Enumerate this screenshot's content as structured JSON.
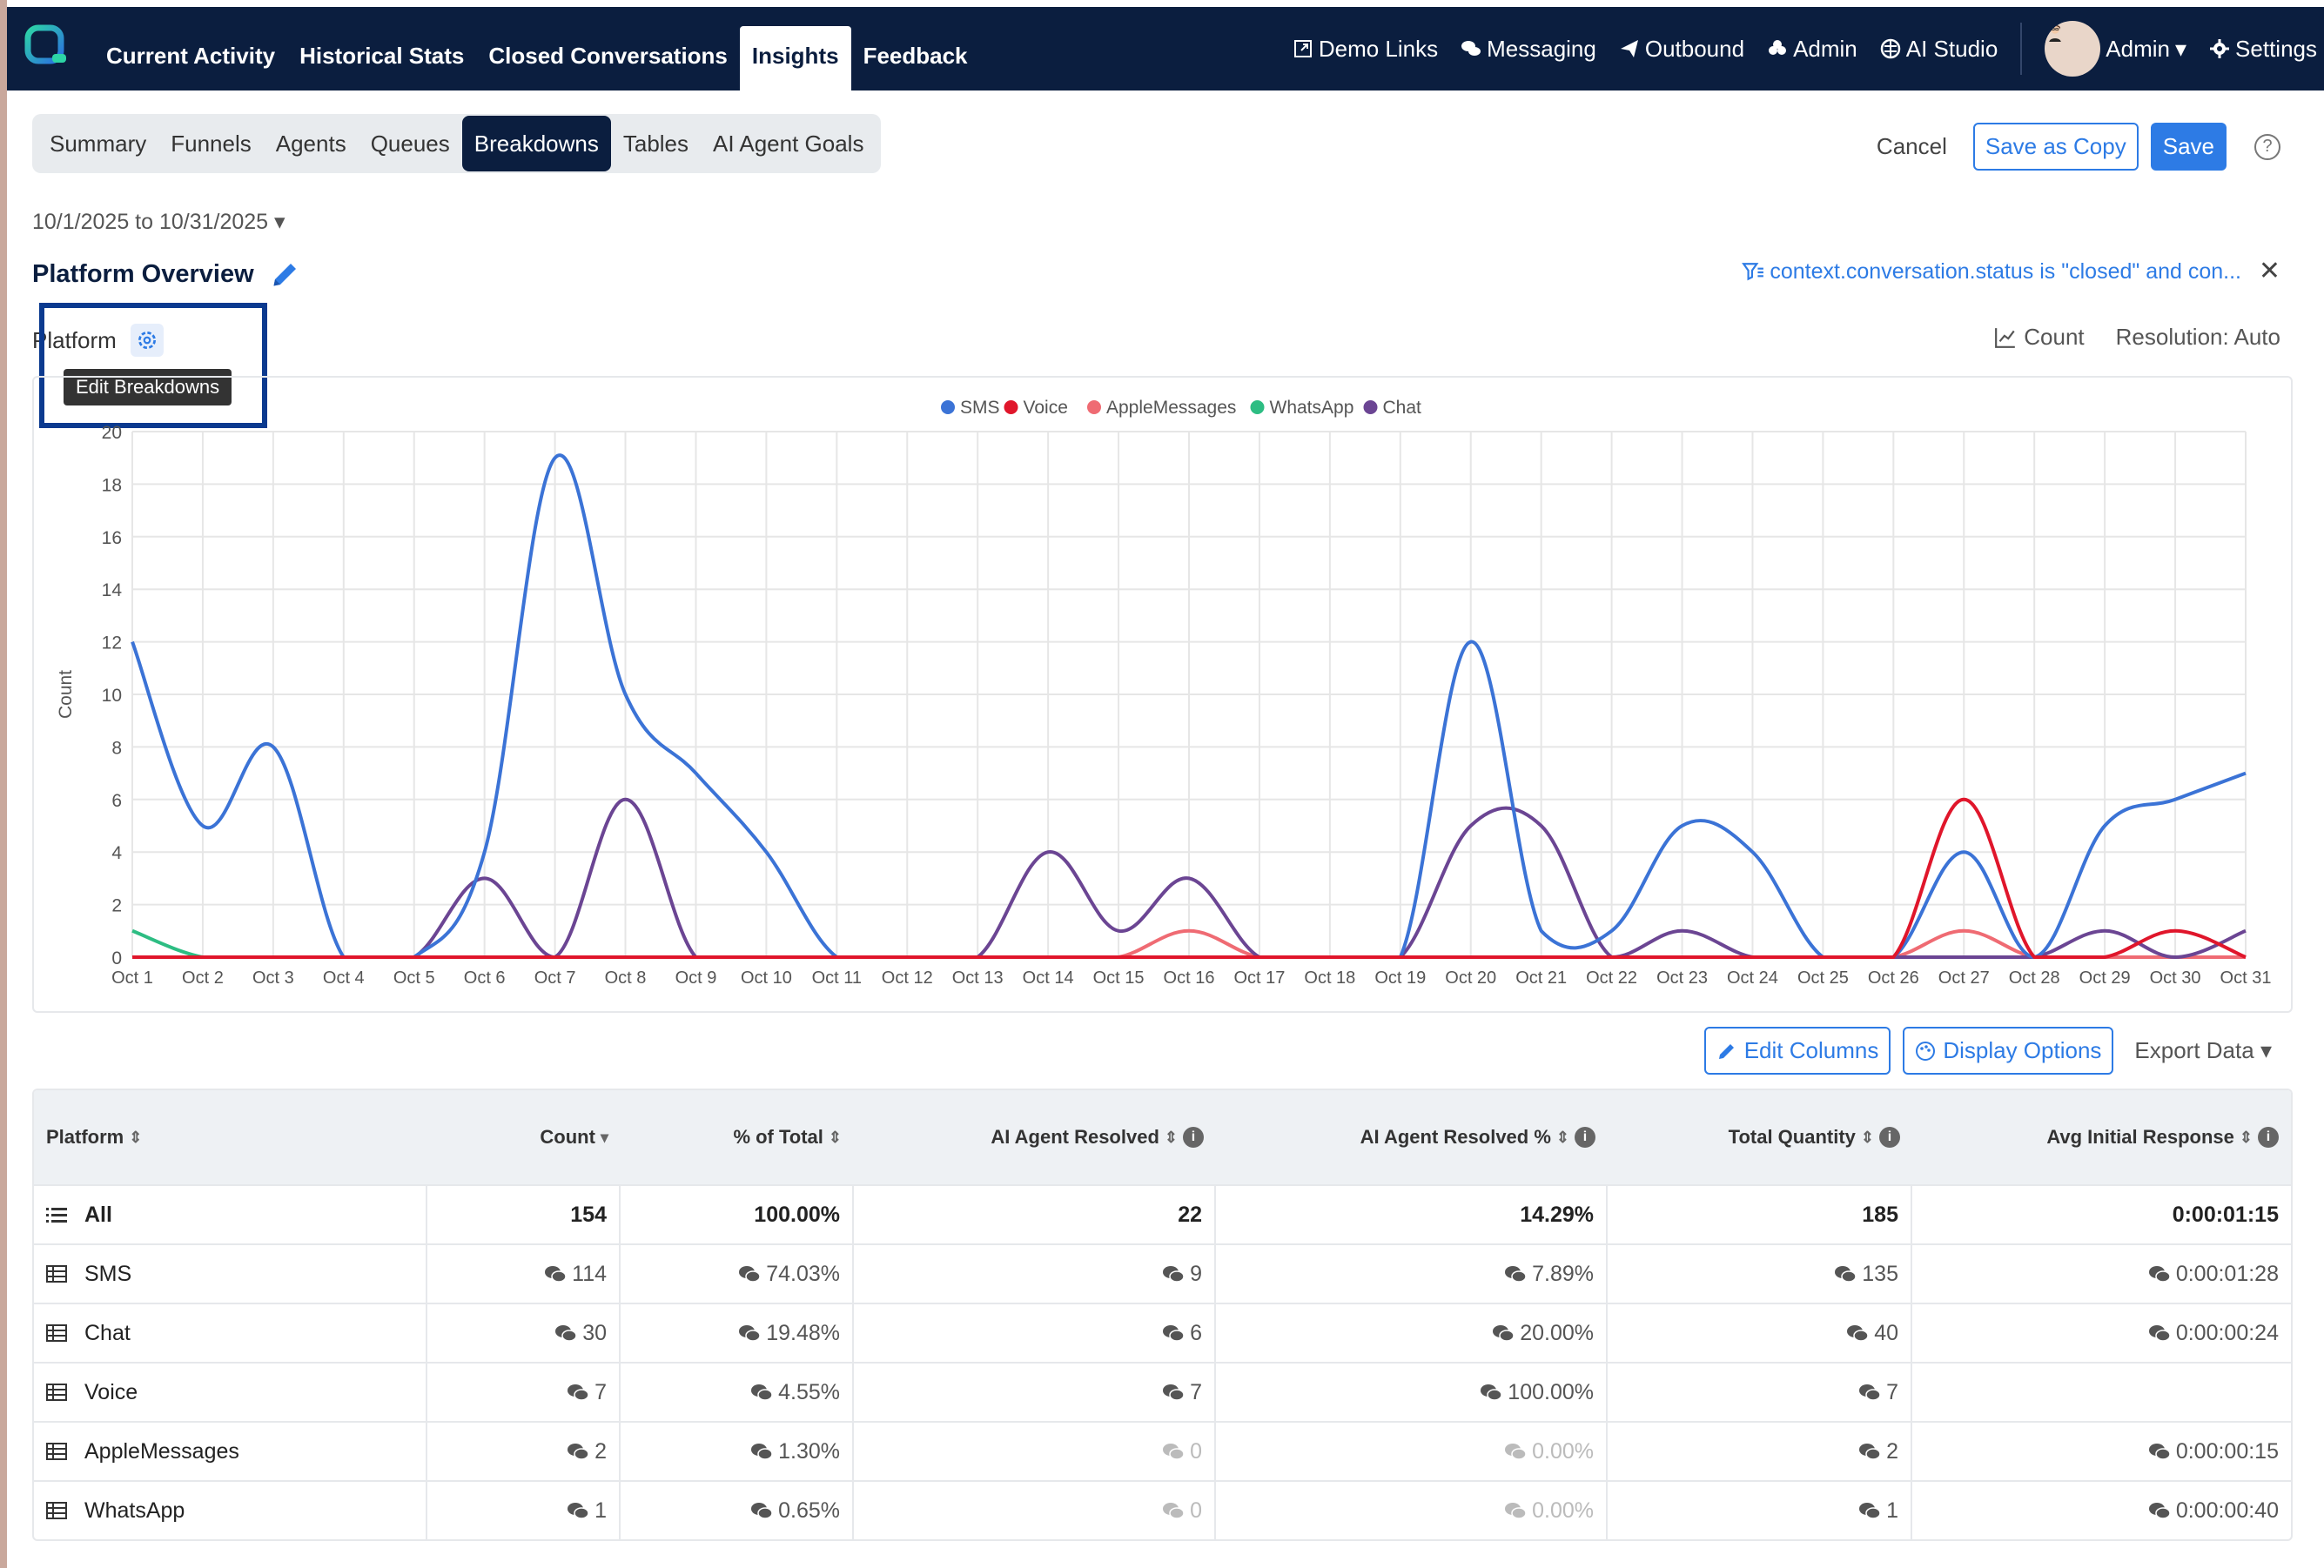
{
  "nav": {
    "items": [
      "Current Activity",
      "Historical Stats",
      "Closed Conversations",
      "Insights",
      "Feedback"
    ],
    "active": "Insights",
    "right": [
      {
        "label": "Demo Links",
        "icon": "external-link-icon"
      },
      {
        "label": "Messaging",
        "icon": "chat-bubbles-icon"
      },
      {
        "label": "Outbound",
        "icon": "paper-plane-icon"
      },
      {
        "label": "Admin",
        "icon": "users-icon"
      },
      {
        "label": "AI Studio",
        "icon": "brain-icon"
      }
    ],
    "user": "Admin",
    "settings": "Settings"
  },
  "subtabs": {
    "items": [
      "Summary",
      "Funnels",
      "Agents",
      "Queues",
      "Breakdowns",
      "Tables",
      "AI Agent Goals"
    ],
    "active": "Breakdowns"
  },
  "actions": {
    "cancel": "Cancel",
    "save_copy": "Save as Copy",
    "save": "Save"
  },
  "date_range": "10/1/2025 to 10/31/2025",
  "report_title": "Platform Overview",
  "filter": "context.conversation.status is \"closed\" and con...",
  "breakdown": {
    "label": "Platform",
    "tooltip": "Edit Breakdowns"
  },
  "metric": "Count",
  "resolution": "Resolution: Auto",
  "chart_data": {
    "type": "line",
    "ylabel": "Count",
    "ylim": [
      0,
      20
    ],
    "yticks": [
      0,
      2,
      4,
      6,
      8,
      10,
      12,
      14,
      16,
      18,
      20
    ],
    "x": [
      "Oct 1",
      "Oct 2",
      "Oct 3",
      "Oct 4",
      "Oct 5",
      "Oct 6",
      "Oct 7",
      "Oct 8",
      "Oct 9",
      "Oct 10",
      "Oct 11",
      "Oct 12",
      "Oct 13",
      "Oct 14",
      "Oct 15",
      "Oct 16",
      "Oct 17",
      "Oct 18",
      "Oct 19",
      "Oct 20",
      "Oct 21",
      "Oct 22",
      "Oct 23",
      "Oct 24",
      "Oct 25",
      "Oct 26",
      "Oct 27",
      "Oct 28",
      "Oct 29",
      "Oct 30",
      "Oct 31"
    ],
    "grid": true,
    "legend": "top-center",
    "series": [
      {
        "name": "SMS",
        "color": "#3b73d6",
        "values": [
          12,
          5,
          8,
          0,
          0,
          4,
          19,
          10,
          7,
          4,
          0,
          0,
          0,
          0,
          0,
          0,
          0,
          0,
          0,
          12,
          1,
          1,
          5,
          4,
          0,
          0,
          4,
          0,
          5,
          6,
          7
        ]
      },
      {
        "name": "Voice",
        "color": "#e0162b",
        "values": [
          0,
          0,
          0,
          0,
          0,
          0,
          0,
          0,
          0,
          0,
          0,
          0,
          0,
          0,
          0,
          0,
          0,
          0,
          0,
          0,
          0,
          0,
          0,
          0,
          0,
          0,
          6,
          0,
          0,
          1,
          0
        ]
      },
      {
        "name": "AppleMessages",
        "color": "#ef6b73",
        "values": [
          0,
          0,
          0,
          0,
          0,
          0,
          0,
          0,
          0,
          0,
          0,
          0,
          0,
          0,
          0,
          1,
          0,
          0,
          0,
          0,
          0,
          0,
          0,
          0,
          0,
          0,
          1,
          0,
          0,
          0,
          0
        ]
      },
      {
        "name": "WhatsApp",
        "color": "#2dbd83",
        "values": [
          1,
          0,
          0,
          0,
          0,
          0,
          0,
          0,
          0,
          0,
          0,
          0,
          0,
          0,
          0,
          0,
          0,
          0,
          0,
          0,
          0,
          0,
          0,
          0,
          0,
          0,
          0,
          0,
          0,
          0,
          0
        ]
      },
      {
        "name": "Chat",
        "color": "#6b4593",
        "values": [
          0,
          0,
          0,
          0,
          0,
          3,
          0,
          6,
          0,
          0,
          0,
          0,
          0,
          4,
          1,
          3,
          0,
          0,
          0,
          5,
          5,
          0,
          1,
          0,
          0,
          0,
          0,
          0,
          1,
          0,
          1
        ]
      }
    ]
  },
  "table_controls": {
    "edit_columns": "Edit Columns",
    "display_options": "Display Options",
    "export": "Export Data"
  },
  "table": {
    "headers": [
      "Platform",
      "Count",
      "% of Total",
      "AI Agent Resolved",
      "AI Agent Resolved %",
      "Total Quantity",
      "Avg Initial Response"
    ],
    "rows": [
      {
        "name": "All",
        "cells": [
          "154",
          "100.00%",
          "22",
          "14.29%",
          "185",
          "0:00:01:15"
        ]
      },
      {
        "name": "SMS",
        "cells": [
          "114",
          "74.03%",
          "9",
          "7.89%",
          "135",
          "0:00:01:28"
        ]
      },
      {
        "name": "Chat",
        "cells": [
          "30",
          "19.48%",
          "6",
          "20.00%",
          "40",
          "0:00:00:24"
        ]
      },
      {
        "name": "Voice",
        "cells": [
          "7",
          "4.55%",
          "7",
          "100.00%",
          "7",
          ""
        ]
      },
      {
        "name": "AppleMessages",
        "cells": [
          "2",
          "1.30%",
          "0",
          "0.00%",
          "2",
          "0:00:00:15"
        ]
      },
      {
        "name": "WhatsApp",
        "cells": [
          "1",
          "0.65%",
          "0",
          "0.00%",
          "1",
          "0:00:00:40"
        ]
      }
    ]
  }
}
